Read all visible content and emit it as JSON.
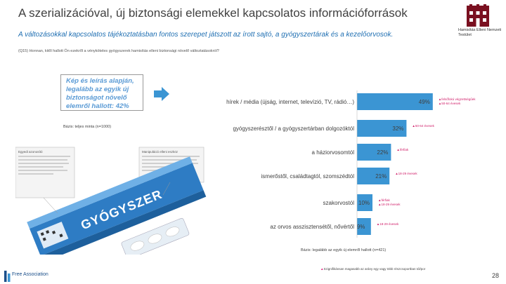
{
  "header": {
    "title": "A szerializációval, új biztonsági elemekkel kapcsolatos információforrások",
    "subtitle": "A változásokkal kapcsolatos tájékoztatásban fontos szerepet játszott az írott sajtó, a gyógyszertárak és a kezelőorvosok.",
    "logo_text": "Hamisítás Elleni Nemzeti Testület"
  },
  "question": "(Q15) Honnan, kitől hallott Ön ezekről a vényköteles gyógyszerek hamisítás elleni biztonsági növelő változtatásokról?",
  "callout": {
    "text": "Kép és leírás alapján, legalább az egyik új biztonságot növelő elemről hallott: 42%",
    "base": "Bázis: teljes minta (n=1000)"
  },
  "package": {
    "left_title": "Egyedi azonosító",
    "right_title": "Manipuláció elleni eszköz",
    "brand": "GYÓGYSZER"
  },
  "chart_data": {
    "type": "bar",
    "orientation": "horizontal",
    "categories": [
      "hírek / média (újság, internet, televízió, TV, rádió…)",
      "gyógyszerésztől / a gyógyszertárban dolgozóktól",
      "a háziorvosomtól",
      "ismerőstől, családtagtól, szomszédtól",
      "szakorvostól",
      "az orvos asszisztensétől, nővértől"
    ],
    "values": [
      49,
      32,
      22,
      21,
      10,
      9
    ],
    "value_labels": [
      "49%",
      "32%",
      "22%",
      "21%",
      "10%",
      "9%"
    ],
    "annotations": [
      [
        "felsőfokú végzettségűek",
        "50-64 évesek"
      ],
      [
        "50-64 évesek"
      ],
      [
        "férfiak"
      ],
      [
        "18-29 évesek"
      ],
      [
        "férfiak",
        "18-29 évesek"
      ],
      [
        "18-29 évesek"
      ]
    ],
    "xlim": [
      0,
      50
    ],
    "base": "Bázis: legalább az egyik új elemről hallott (n=421)"
  },
  "footer": {
    "footnote": "Szignifikánsan magasabb az arány egy vagy több részcsoportban tól/por",
    "page": "28",
    "org": "Free Association"
  }
}
